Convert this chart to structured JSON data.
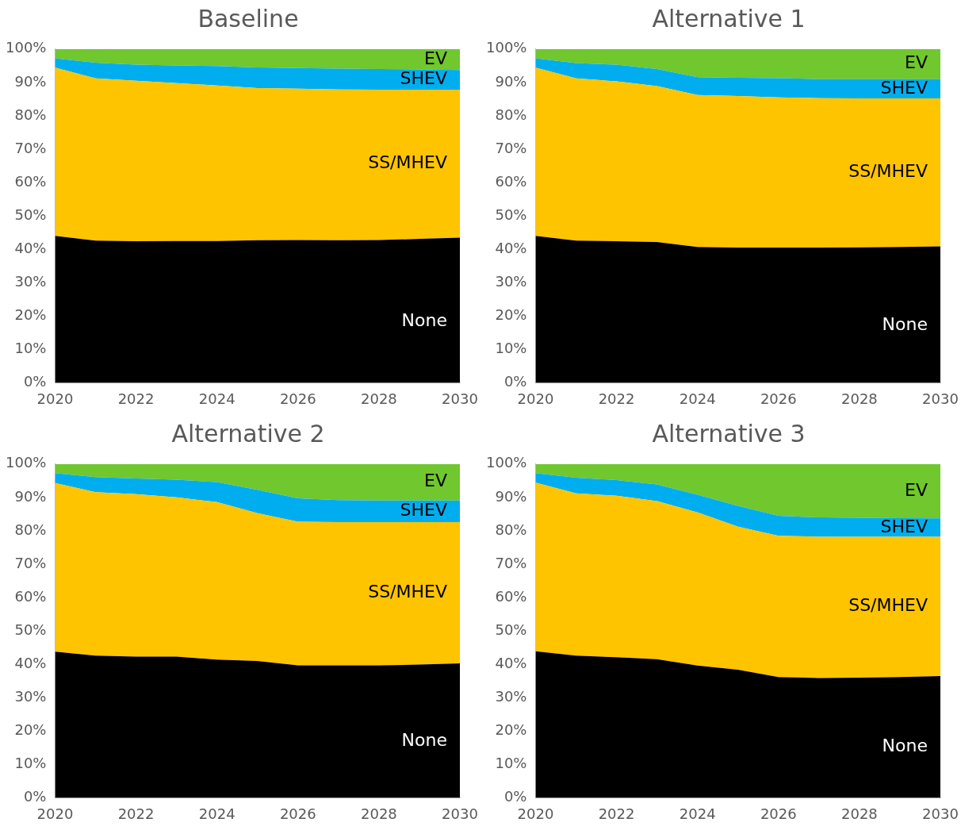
{
  "chart_data": [
    {
      "type": "area",
      "title": "Baseline",
      "stacked": true,
      "x": [
        2020,
        2021,
        2022,
        2023,
        2024,
        2025,
        2026,
        2027,
        2028,
        2029,
        2030
      ],
      "xlim": [
        2020,
        2030
      ],
      "xticks": [
        2020,
        2022,
        2024,
        2026,
        2028,
        2030
      ],
      "ylim": [
        0,
        100
      ],
      "yticks": [
        {
          "value": 0,
          "label": "0%"
        },
        {
          "value": 10,
          "label": "10%"
        },
        {
          "value": 20,
          "label": "20%"
        },
        {
          "value": 30,
          "label": "30%"
        },
        {
          "value": 40,
          "label": "40%"
        },
        {
          "value": 50,
          "label": "50%"
        },
        {
          "value": 60,
          "label": "60%"
        },
        {
          "value": 70,
          "label": "70%"
        },
        {
          "value": 80,
          "label": "80%"
        },
        {
          "value": 90,
          "label": "90%"
        },
        {
          "value": 100,
          "label": "100%"
        }
      ],
      "grid": false,
      "legend": false,
      "series": [
        {
          "name": "None",
          "color": "#000000",
          "values": [
            44,
            42.6,
            42.4,
            42.5,
            42.5,
            42.7,
            42.8,
            42.7,
            42.8,
            43.1,
            43.5
          ]
        },
        {
          "name": "SS/MHEV",
          "color": "#ffc400",
          "values": [
            50.4,
            48.6,
            48.1,
            47.3,
            46.6,
            45.6,
            45.3,
            45.2,
            45.0,
            44.7,
            44.3
          ]
        },
        {
          "name": "SHEV",
          "color": "#00aeef",
          "values": [
            2.8,
            4.7,
            4.8,
            5.3,
            5.8,
            6.2,
            6.2,
            6.2,
            6.2,
            6.1,
            5.9
          ]
        },
        {
          "name": "EV",
          "color": "#70c72e",
          "values": [
            2.8,
            4.1,
            4.7,
            4.9,
            5.1,
            5.5,
            5.7,
            5.9,
            6.0,
            6.1,
            6.3
          ]
        }
      ]
    },
    {
      "type": "area",
      "title": "Alternative 1",
      "stacked": true,
      "x": [
        2020,
        2021,
        2022,
        2023,
        2024,
        2025,
        2026,
        2027,
        2028,
        2029,
        2030
      ],
      "xlim": [
        2020,
        2030
      ],
      "xticks": [
        2020,
        2022,
        2024,
        2026,
        2028,
        2030
      ],
      "ylim": [
        0,
        100
      ],
      "yticks": [
        {
          "value": 0,
          "label": "0%"
        },
        {
          "value": 10,
          "label": "10%"
        },
        {
          "value": 20,
          "label": "20%"
        },
        {
          "value": 30,
          "label": "30%"
        },
        {
          "value": 40,
          "label": "40%"
        },
        {
          "value": 50,
          "label": "50%"
        },
        {
          "value": 60,
          "label": "60%"
        },
        {
          "value": 70,
          "label": "70%"
        },
        {
          "value": 80,
          "label": "80%"
        },
        {
          "value": 90,
          "label": "90%"
        },
        {
          "value": 100,
          "label": "100%"
        }
      ],
      "grid": false,
      "legend": false,
      "series": [
        {
          "name": "None",
          "color": "#000000",
          "values": [
            44,
            42.6,
            42.4,
            42.2,
            40.7,
            40.5,
            40.5,
            40.5,
            40.6,
            40.7,
            40.9
          ]
        },
        {
          "name": "SS/MHEV",
          "color": "#ffc400",
          "values": [
            50.4,
            48.6,
            47.9,
            46.7,
            45.5,
            45.4,
            45.0,
            44.8,
            44.6,
            44.5,
            44.3
          ]
        },
        {
          "name": "SHEV",
          "color": "#00aeef",
          "values": [
            2.8,
            4.6,
            5.0,
            5.1,
            5.4,
            5.5,
            5.8,
            5.7,
            5.8,
            5.8,
            5.8
          ]
        },
        {
          "name": "EV",
          "color": "#70c72e",
          "values": [
            2.8,
            4.2,
            4.7,
            6.0,
            8.4,
            8.6,
            8.7,
            9.0,
            9.0,
            9.0,
            9.0
          ]
        }
      ]
    },
    {
      "type": "area",
      "title": "Alternative 2",
      "stacked": true,
      "x": [
        2020,
        2021,
        2022,
        2023,
        2024,
        2025,
        2026,
        2027,
        2028,
        2029,
        2030
      ],
      "xlim": [
        2020,
        2030
      ],
      "xticks": [
        2020,
        2022,
        2024,
        2026,
        2028,
        2030
      ],
      "ylim": [
        0,
        100
      ],
      "yticks": [
        {
          "value": 0,
          "label": "0%"
        },
        {
          "value": 10,
          "label": "10%"
        },
        {
          "value": 20,
          "label": "20%"
        },
        {
          "value": 30,
          "label": "30%"
        },
        {
          "value": 40,
          "label": "40%"
        },
        {
          "value": 50,
          "label": "50%"
        },
        {
          "value": 60,
          "label": "60%"
        },
        {
          "value": 70,
          "label": "70%"
        },
        {
          "value": 80,
          "label": "80%"
        },
        {
          "value": 90,
          "label": "90%"
        },
        {
          "value": 100,
          "label": "100%"
        }
      ],
      "grid": false,
      "legend": false,
      "series": [
        {
          "name": "None",
          "color": "#000000",
          "values": [
            43.8,
            42.6,
            42.3,
            42.3,
            41.4,
            41.0,
            39.7,
            39.7,
            39.7,
            39.9,
            40.3
          ]
        },
        {
          "name": "SS/MHEV",
          "color": "#ffc400",
          "values": [
            50.5,
            49.0,
            48.7,
            47.7,
            47.2,
            44.3,
            43.0,
            42.9,
            42.9,
            42.7,
            42.3
          ]
        },
        {
          "name": "SHEV",
          "color": "#00aeef",
          "values": [
            3.0,
            4.5,
            4.7,
            5.3,
            6.0,
            7.0,
            7.0,
            6.6,
            6.5,
            6.5,
            6.5
          ]
        },
        {
          "name": "EV",
          "color": "#70c72e",
          "values": [
            2.7,
            3.9,
            4.3,
            4.7,
            5.4,
            7.7,
            10.3,
            10.8,
            10.9,
            10.9,
            10.9
          ]
        }
      ]
    },
    {
      "type": "area",
      "title": "Alternative 3",
      "stacked": true,
      "x": [
        2020,
        2021,
        2022,
        2023,
        2024,
        2025,
        2026,
        2027,
        2028,
        2029,
        2030
      ],
      "xlim": [
        2020,
        2030
      ],
      "xticks": [
        2020,
        2022,
        2024,
        2026,
        2028,
        2030
      ],
      "ylim": [
        0,
        100
      ],
      "yticks": [
        {
          "value": 0,
          "label": "0%"
        },
        {
          "value": 10,
          "label": "10%"
        },
        {
          "value": 20,
          "label": "20%"
        },
        {
          "value": 30,
          "label": "30%"
        },
        {
          "value": 40,
          "label": "40%"
        },
        {
          "value": 50,
          "label": "50%"
        },
        {
          "value": 60,
          "label": "60%"
        },
        {
          "value": 70,
          "label": "70%"
        },
        {
          "value": 80,
          "label": "80%"
        },
        {
          "value": 90,
          "label": "90%"
        },
        {
          "value": 100,
          "label": "100%"
        }
      ],
      "grid": false,
      "legend": false,
      "series": [
        {
          "name": "None",
          "color": "#000000",
          "values": [
            43.9,
            42.6,
            42.1,
            41.5,
            39.6,
            38.4,
            36.2,
            35.9,
            36.0,
            36.2,
            36.5
          ]
        },
        {
          "name": "SS/MHEV",
          "color": "#ffc400",
          "values": [
            50.5,
            48.6,
            48.4,
            47.4,
            45.9,
            42.8,
            42.3,
            42.3,
            42.2,
            42.0,
            41.7
          ]
        },
        {
          "name": "SHEV",
          "color": "#00aeef",
          "values": [
            2.9,
            4.7,
            4.7,
            5.0,
            5.3,
            6.3,
            6.0,
            5.8,
            5.7,
            5.6,
            5.5
          ]
        },
        {
          "name": "EV",
          "color": "#70c72e",
          "values": [
            2.7,
            4.1,
            4.8,
            6.1,
            9.2,
            12.5,
            15.5,
            16.0,
            16.1,
            16.2,
            16.3
          ]
        }
      ]
    }
  ]
}
